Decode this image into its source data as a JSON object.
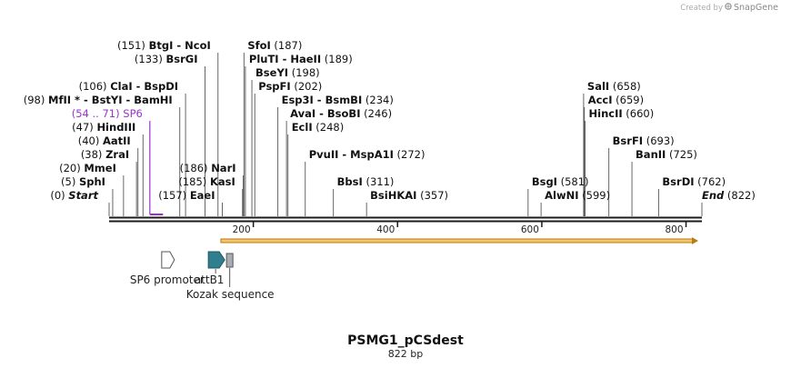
{
  "credit": {
    "prefix": "Created by",
    "brand": "SnapGene"
  },
  "title": "PSMG1_pCSdest",
  "length_label": "822 bp",
  "sequence_length": 822,
  "colors": {
    "primer": "#9a33cc",
    "orf_fill": "#f5c56a",
    "orf_stroke": "#b77c16",
    "attb": "#2f7f8f",
    "kozak": "#a8adb5"
  },
  "scale": {
    "ticks": [
      "200",
      "400",
      "600",
      "800"
    ],
    "values": [
      200,
      400,
      600,
      800
    ]
  },
  "left_sites": [
    {
      "pos": 0,
      "pos_label": "(0)",
      "name": "Start",
      "italic": true,
      "row": 0,
      "cut": 0
    },
    {
      "pos": 5,
      "pos_label": "(5)",
      "name": "SphI",
      "row": 1,
      "cut": 5
    },
    {
      "pos": 20,
      "pos_label": "(20)",
      "name": "MmeI",
      "row": 2,
      "cut": 20
    },
    {
      "pos": 38,
      "pos_label": "(38)",
      "name": "ZraI",
      "row": 3,
      "cut": 38
    },
    {
      "pos": 40,
      "pos_label": "(40)",
      "name": "AatII",
      "row": 4,
      "cut": 40
    },
    {
      "pos": 47,
      "pos_label": "(47)",
      "name": "HindIII",
      "row": 5,
      "cut": 47
    },
    {
      "pos": 98,
      "pos_label": "(98)",
      "name": "MfII * - BstYI - BamHI",
      "row": 7,
      "cut": 98
    },
    {
      "pos": 106,
      "pos_label": "(106)",
      "name": "ClaI - BspDI",
      "row": 8,
      "cut": 106
    },
    {
      "pos": 133,
      "pos_label": "(133)",
      "name": "BsrGI",
      "row": 10,
      "cut": 133
    },
    {
      "pos": 151,
      "pos_label": "(151)",
      "name": "BtgI - NcoI",
      "row": 11,
      "cut": 151
    },
    {
      "pos": 157,
      "pos_label": "(157)",
      "name": "EaeI",
      "row": 0,
      "cut": 157
    },
    {
      "pos": 185,
      "pos_label": "(185)",
      "name": "KasI",
      "row": 1,
      "cut": 185
    },
    {
      "pos": 186,
      "pos_label": "(186)",
      "name": "NarI",
      "row": 2,
      "cut": 186
    }
  ],
  "primer": {
    "range_label": "(54 .. 71)",
    "name": "SP6",
    "start": 54,
    "end": 71
  },
  "right_sites": [
    {
      "pos": 187,
      "pos_label": "(187)",
      "name": "SfoI",
      "row": 11,
      "cut": 187
    },
    {
      "pos": 189,
      "pos_label": "(189)",
      "name": "PluTI - HaeII",
      "row": 10,
      "cut": 189
    },
    {
      "pos": 198,
      "pos_label": "(198)",
      "name": "BseYI",
      "row": 9,
      "cut": 198
    },
    {
      "pos": 202,
      "pos_label": "(202)",
      "name": "PspFI",
      "row": 8,
      "cut": 202
    },
    {
      "pos": 234,
      "pos_label": "(234)",
      "name": "Esp3I - BsmBI",
      "row": 7,
      "cut": 234
    },
    {
      "pos": 246,
      "pos_label": "(246)",
      "name": "AvaI - BsoBI",
      "row": 6,
      "cut": 246
    },
    {
      "pos": 248,
      "pos_label": "(248)",
      "name": "EclI",
      "row": 5,
      "cut": 248
    },
    {
      "pos": 272,
      "pos_label": "(272)",
      "name": "PvuII - MspA1I",
      "row": 3,
      "cut": 272
    },
    {
      "pos": 311,
      "pos_label": "(311)",
      "name": "BbsI",
      "row": 1,
      "cut": 311
    },
    {
      "pos": 357,
      "pos_label": "(357)",
      "name": "BsiHKAI",
      "row": 0,
      "cut": 357
    },
    {
      "pos": 581,
      "pos_label": "(581)",
      "name": "BsgI",
      "row": 1,
      "cut": 581
    },
    {
      "pos": 599,
      "pos_label": "(599)",
      "name": "AlwNI",
      "row": 0,
      "cut": 599
    },
    {
      "pos": 658,
      "pos_label": "(658)",
      "name": "SalI",
      "row": 8,
      "cut": 658
    },
    {
      "pos": 659,
      "pos_label": "(659)",
      "name": "AccI",
      "row": 7,
      "cut": 659
    },
    {
      "pos": 660,
      "pos_label": "(660)",
      "name": "HincII",
      "row": 6,
      "cut": 660
    },
    {
      "pos": 693,
      "pos_label": "(693)",
      "name": "BsrFI",
      "row": 4,
      "cut": 693
    },
    {
      "pos": 725,
      "pos_label": "(725)",
      "name": "BanII",
      "row": 3,
      "cut": 725
    },
    {
      "pos": 762,
      "pos_label": "(762)",
      "name": "BsrDI",
      "row": 1,
      "cut": 762
    },
    {
      "pos": 822,
      "pos_label": "(822)",
      "name": "End",
      "italic": true,
      "row": 0,
      "cut": 822
    }
  ],
  "features": {
    "orf": {
      "start": 155,
      "end": 822
    },
    "sp6_promoter": {
      "label": "SP6 promoter",
      "start": 54,
      "end": 71
    },
    "attb1": {
      "label": "attB1",
      "start": 125,
      "end": 149
    },
    "kozak": {
      "label": "Kozak sequence",
      "start": 150,
      "end": 160
    }
  }
}
